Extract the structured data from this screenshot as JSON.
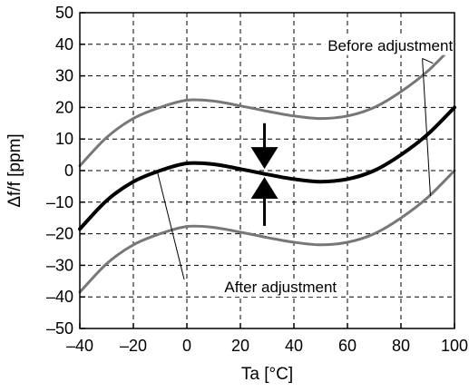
{
  "chart_data": {
    "type": "line",
    "xlabel": "Ta [°C]",
    "ylabel": "Δf/f [ppm]",
    "xlim": [
      -40,
      100
    ],
    "ylim": [
      -50,
      50
    ],
    "x_ticks": [
      -40,
      -20,
      0,
      20,
      40,
      60,
      80,
      100
    ],
    "x_tick_labels": [
      "–40",
      "–20",
      "0",
      "20",
      "40",
      "60",
      "80",
      "100"
    ],
    "y_ticks": [
      -50,
      -40,
      -30,
      -20,
      -10,
      0,
      10,
      20,
      30,
      40,
      50
    ],
    "y_tick_labels": [
      "–50",
      "–40",
      "–30",
      "–20",
      "–10",
      "0",
      "10",
      "20",
      "30",
      "40",
      "50"
    ],
    "grid": true,
    "grid_style": "dashed",
    "series": [
      {
        "role": "upper",
        "color": "#777777",
        "x": [
          -40,
          -30,
          -20,
          -10,
          0,
          10,
          20,
          30,
          40,
          50,
          60,
          70,
          80,
          90,
          100
        ],
        "y": [
          1.5,
          10.5,
          16.5,
          20,
          22.3,
          22,
          20.5,
          18.8,
          17.3,
          16.5,
          17.3,
          20,
          25,
          31.5,
          40
        ]
      },
      {
        "role": "middle",
        "color": "#000000",
        "x": [
          -40,
          -30,
          -20,
          -10,
          0,
          10,
          20,
          30,
          40,
          50,
          60,
          70,
          80,
          90,
          100
        ],
        "y": [
          -18.5,
          -9.5,
          -3.5,
          0,
          2.3,
          2,
          0.5,
          -1.2,
          -2.7,
          -3.5,
          -2.7,
          0,
          5,
          11.5,
          20
        ]
      },
      {
        "role": "lower",
        "color": "#777777",
        "x": [
          -40,
          -30,
          -20,
          -10,
          0,
          10,
          20,
          30,
          40,
          50,
          60,
          70,
          80,
          90,
          100
        ],
        "y": [
          -38.5,
          -29.5,
          -23.5,
          -20,
          -17.7,
          -18,
          -19.5,
          -21.2,
          -22.7,
          -23.5,
          -22.7,
          -20,
          -15,
          -8.5,
          0
        ]
      }
    ],
    "annotations": {
      "before": {
        "text": "Before adjustment",
        "label_pos": [
          76,
          38
        ],
        "pointer_targets": [
          [
            92,
            34
          ],
          [
            91,
            -8
          ]
        ]
      },
      "after": {
        "text": "After adjustment",
        "label_pos": [
          35,
          -38.5
        ],
        "pointer_target": [
          -11,
          -0.5
        ]
      },
      "arrows": [
        {
          "x": 29,
          "from_y": 15,
          "to_y": 4
        },
        {
          "x": 29,
          "from_y": -17.5,
          "to_y": -5.5
        }
      ]
    }
  }
}
